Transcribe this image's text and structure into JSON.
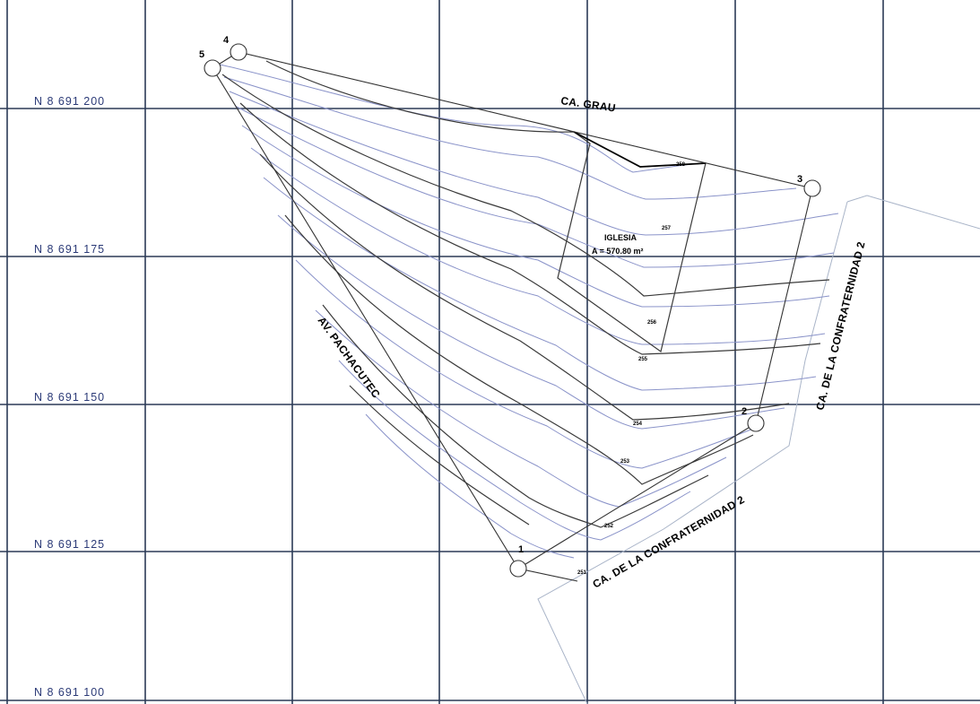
{
  "northings": [
    {
      "id": "n-200",
      "text": "N  8  691  200"
    },
    {
      "id": "n-175",
      "text": "N  8  691  175"
    },
    {
      "id": "n-150",
      "text": "N  8  691  150"
    },
    {
      "id": "n-125",
      "text": "N  8  691  125"
    },
    {
      "id": "n-100",
      "text": "N  8  691  100"
    }
  ],
  "streets": {
    "grau": "CA. GRAU",
    "pachacutec": "AV. PACHACUTEC",
    "confraternidad_east": "CA. DE LA CONFRATERNIDAD 2",
    "confraternidad_south": "CA. DE LA CONFRATERNIDAD 2"
  },
  "vertices": [
    "1",
    "2",
    "3",
    "4",
    "5"
  ],
  "church": {
    "name": "IGLESIA",
    "area": "A = 570.80 m²"
  },
  "contour_labels": [
    "258",
    "257",
    "256",
    "255",
    "254",
    "253",
    "252",
    "251"
  ],
  "colors": {
    "grid": "#2b3a57",
    "northing_text": "#2b3a77",
    "contour_blue": "#8a93c9",
    "street_edge": "#a9b4c8"
  }
}
